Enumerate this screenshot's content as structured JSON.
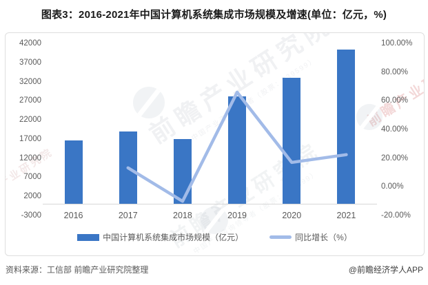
{
  "title": "图表3：2016-2021年中国计算机系统集成市场规模及增速(单位：亿元，%)",
  "colors": {
    "bar": "#3A76C5",
    "line": "#A2BBE8",
    "axis_text": "#595959",
    "box_border": "#DEDEDE"
  },
  "chart_data": {
    "type": "bar",
    "categories": [
      "2016",
      "2017",
      "2018",
      "2019",
      "2020",
      "2021"
    ],
    "series": [
      {
        "name": "中国计算机系统集成市场规模（亿元）",
        "type": "bar",
        "axis": "left",
        "values": [
          16700,
          18900,
          17000,
          28200,
          33000,
          40400
        ]
      },
      {
        "name": "同比增长（%）",
        "type": "line",
        "axis": "right",
        "values": [
          null,
          13.2,
          -10.1,
          65.9,
          17.0,
          22.4
        ]
      }
    ],
    "left_axis": {
      "min": -3000,
      "max": 42000,
      "ticks": [
        "42000",
        "37000",
        "32000",
        "27000",
        "22000",
        "17000",
        "12000",
        "7000",
        "2000",
        "-3000"
      ]
    },
    "right_axis": {
      "min": -20,
      "max": 100,
      "ticks": [
        "100.00%",
        "80.00%",
        "60.00%",
        "40.00%",
        "20.00%",
        "0.00%",
        "-20.00%"
      ]
    },
    "grid": false,
    "legend_position": "bottom"
  },
  "legend": [
    {
      "label": "中国计算机系统集成市场规模（亿元）"
    },
    {
      "label": "同比增长（%）"
    }
  ],
  "footer": {
    "source": "资料来源：工信部 前瞻产业研究院整理",
    "credit": "@前瞻经济学人APP"
  },
  "watermarks": {
    "brand": "前瞻产业研究院",
    "tagline": "中国产业咨询领导者（股票：839599）",
    "side": "前瞻产业研究院"
  }
}
